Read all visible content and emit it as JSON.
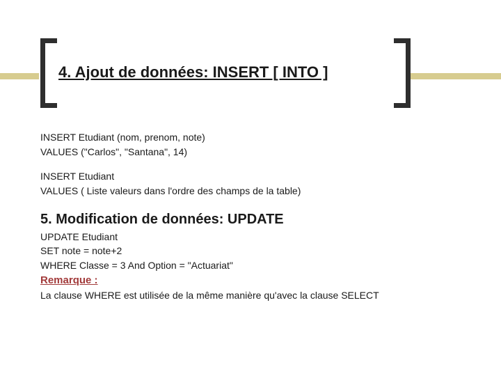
{
  "title": "4. Ajout de données: INSERT [ INTO ]",
  "block1": {
    "line1": "INSERT Etudiant (nom, prenom, note)",
    "line2": "VALUES (\"Carlos\", \"Santana\", 14)"
  },
  "block2": {
    "line1": "INSERT Etudiant",
    "line2": "VALUES ( Liste valeurs dans l'ordre des champs de la table)"
  },
  "section2_title": "5. Modification de données: UPDATE",
  "block3": {
    "line1": "UPDATE Etudiant",
    "line2": "SET  note = note+2",
    "line3": "WHERE Classe = 3 And Option = \"Actuariat\""
  },
  "remark": {
    "label": "Remarque :",
    "text": "La clause WHERE est utilisée de la même manière qu'avec la clause SELECT"
  },
  "colors": {
    "strip": "#d7cc8f",
    "bracket": "#2e2e2e",
    "text": "#1a1a1a",
    "remark": "#a23a3a"
  }
}
